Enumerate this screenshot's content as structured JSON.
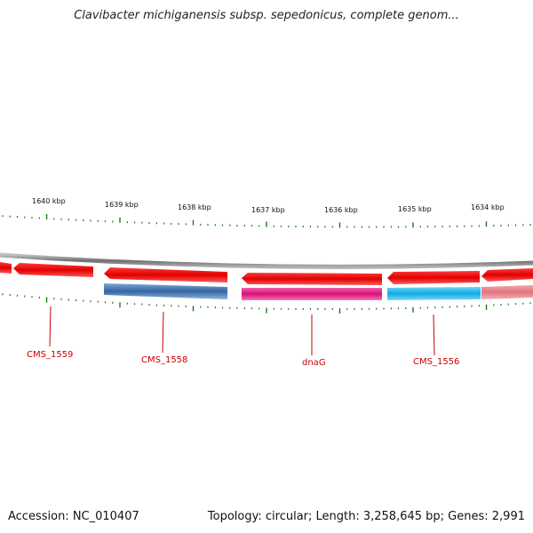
{
  "title": "Clavibacter michiganensis subsp. sepedonicus, complete genom...",
  "footer": {
    "accession": "Accession: NC_010407",
    "summary": "Topology: circular; Length: 3,258,645 bp; Genes: 2,991"
  },
  "scale_labels": [
    "1640 kbp",
    "1639 kbp",
    "1638 kbp",
    "1637 kbp",
    "1636 kbp",
    "1635 kbp",
    "1634 kbp"
  ],
  "gene_labels": [
    "CMS_1559",
    "CMS_1558",
    "dnaG",
    "CMS_1556"
  ],
  "colors": {
    "backbone": "#808080",
    "strand_arrow": "#ee0000",
    "cds_blue": "#3f74b0",
    "cds_magenta": "#e0127e",
    "cds_cyan": "#17b2ea",
    "cds_pink": "#e8808a",
    "tick": "#1e7a1e",
    "label": "#cc0000"
  }
}
